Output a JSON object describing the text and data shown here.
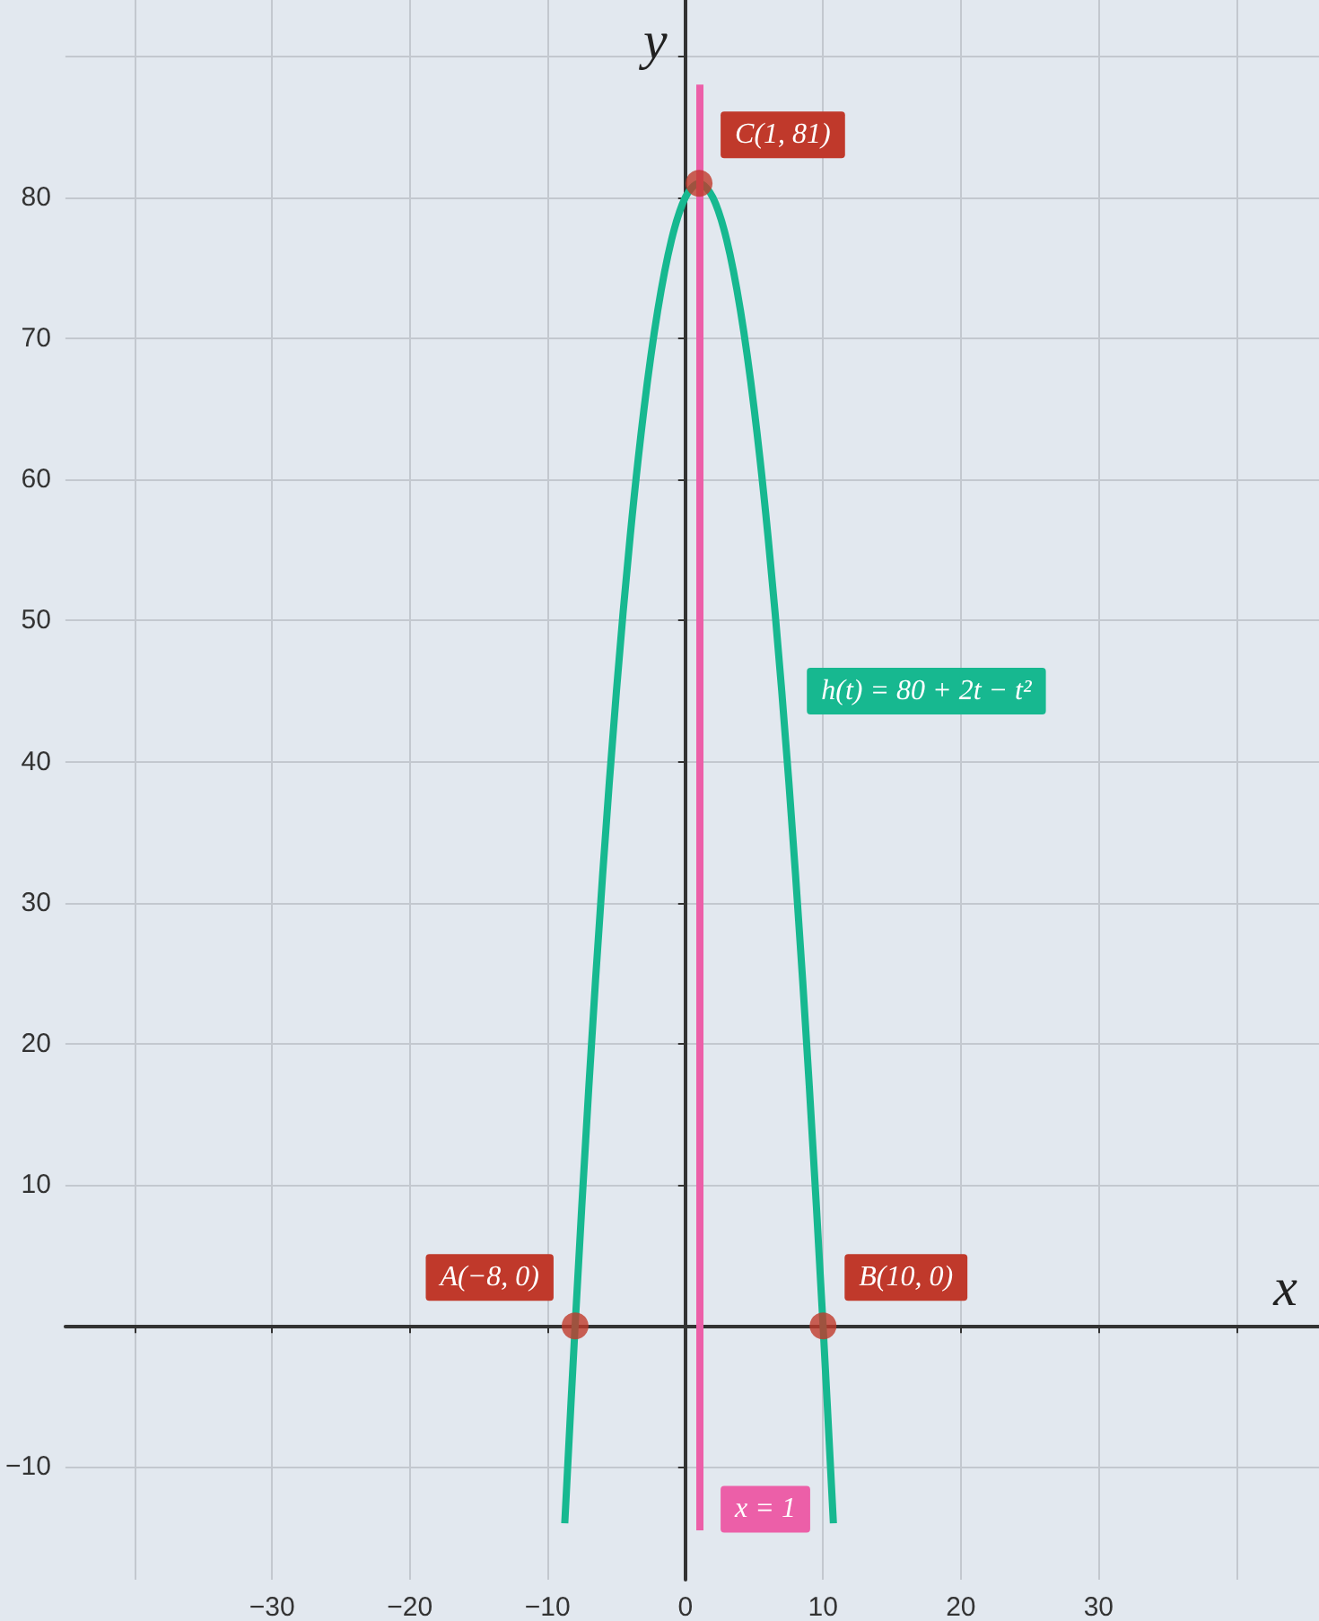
{
  "chart_data": {
    "type": "line",
    "xlabel": "x",
    "ylabel": "y",
    "xlim": [
      -45,
      46
    ],
    "ylim": [
      -18,
      94
    ],
    "xticks": [
      {
        "value": -40,
        "label": null
      },
      -30,
      -20,
      -10,
      0,
      10,
      20,
      30,
      {
        "value": 40,
        "label": null
      }
    ],
    "yticks": [
      -10,
      {
        "value": 0,
        "label": null
      },
      10,
      20,
      30,
      40,
      50,
      60,
      70,
      80,
      {
        "value": 90,
        "label": null
      }
    ],
    "grid": true,
    "legend": false,
    "series": [
      {
        "name": "h(t) = 80 + 2t − t²",
        "color": "#17b890",
        "x": [
          -8.75,
          -8,
          -7,
          -6,
          -5,
          -4,
          -3,
          -2,
          -1,
          0,
          1,
          2,
          3,
          4,
          5,
          6,
          7,
          8,
          9,
          10,
          10.75
        ],
        "values": [
          -14,
          0,
          17,
          32,
          45,
          56,
          65,
          72,
          77,
          80,
          81,
          80,
          77,
          72,
          65,
          56,
          45,
          32,
          17,
          0,
          -14
        ]
      },
      {
        "type": "scatter",
        "color": "#c0392b",
        "marker": "circle",
        "x": [
          -8,
          10,
          1
        ],
        "values": [
          0,
          0,
          81
        ]
      }
    ],
    "ref_lines": [
      {
        "axis": "x",
        "value": 1,
        "label": "x = 1",
        "color": "#ec5fa8"
      }
    ],
    "annotations": [
      {
        "text": "A(−8, 0)",
        "x": -8,
        "y": 0
      },
      {
        "text": "B(10, 0)",
        "x": 10,
        "y": 0
      },
      {
        "text": "C(1, 81)",
        "x": 1,
        "y": 81
      }
    ]
  }
}
